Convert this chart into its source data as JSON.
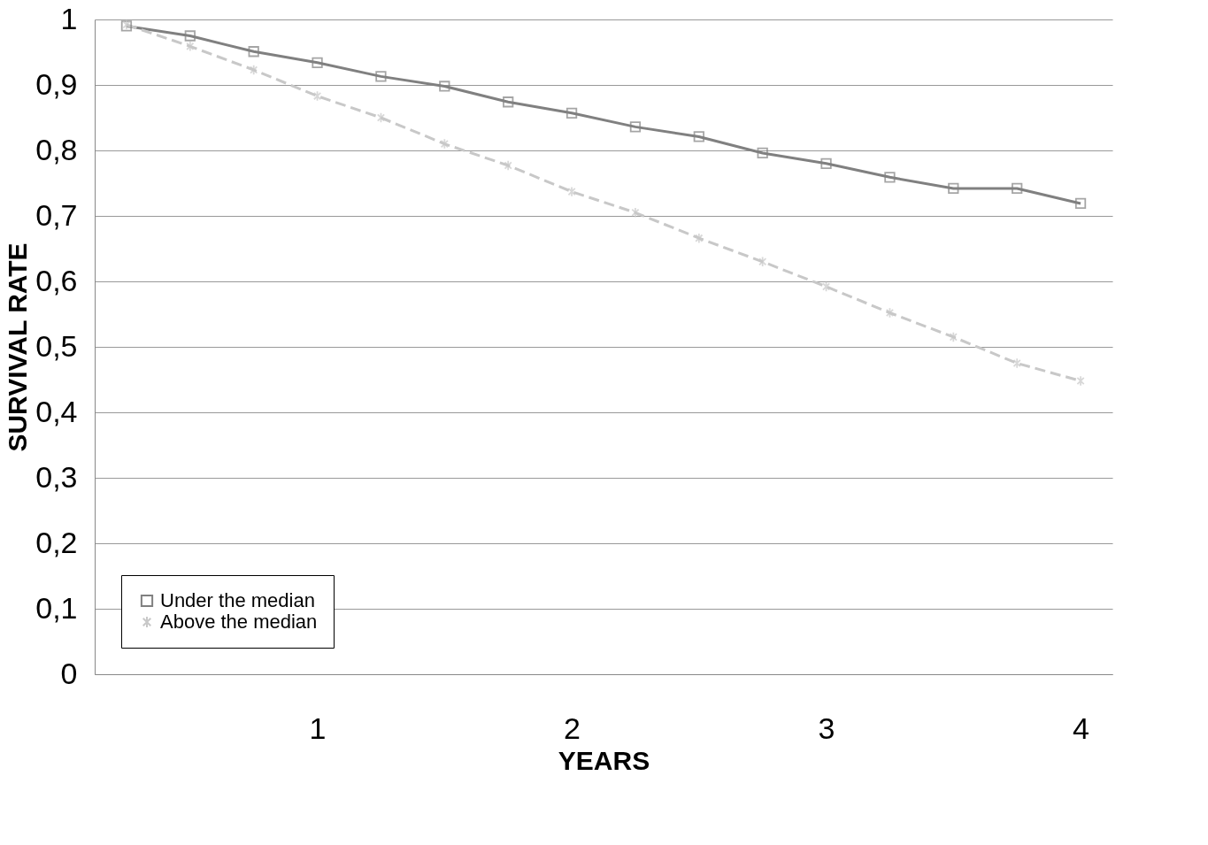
{
  "chart_data": {
    "type": "line",
    "xlabel": "YEARS",
    "ylabel": "SURVIVAL RATE",
    "categories": [
      null,
      null,
      null,
      "1",
      null,
      null,
      null,
      "2",
      null,
      null,
      null,
      "3",
      null,
      null,
      null,
      "4"
    ],
    "series": [
      {
        "name": "Under the median",
        "color": "#808080",
        "marker": "square",
        "line_style": "solid",
        "values": [
          0.99,
          0.975,
          0.951,
          0.934,
          0.913,
          0.898,
          0.874,
          0.857,
          0.836,
          0.821,
          0.796,
          0.78,
          0.759,
          0.742,
          0.742,
          0.719
        ]
      },
      {
        "name": "Above the median",
        "color": "#c8c8c8",
        "marker": "cross",
        "line_style": "dashed",
        "values": [
          0.992,
          0.959,
          0.923,
          0.883,
          0.85,
          0.81,
          0.777,
          0.737,
          0.705,
          0.666,
          0.63,
          0.592,
          0.552,
          0.515,
          0.475,
          0.448
        ]
      }
    ],
    "ylim": [
      0,
      1
    ],
    "yticks": [
      0,
      {
        "value": 0.1,
        "label": "0,1"
      },
      {
        "value": 0.2,
        "label": "0,2"
      },
      {
        "value": 0.3,
        "label": "0,3"
      },
      {
        "value": 0.4,
        "label": "0,4"
      },
      {
        "value": 0.5,
        "label": "0,5"
      },
      {
        "value": 0.6,
        "label": "0,6"
      },
      {
        "value": 0.7,
        "label": "0,7"
      },
      {
        "value": 0.8,
        "label": "0,8"
      },
      {
        "value": 0.9,
        "label": "0,9"
      },
      1
    ],
    "grid": "y",
    "legend": "bottom left"
  }
}
